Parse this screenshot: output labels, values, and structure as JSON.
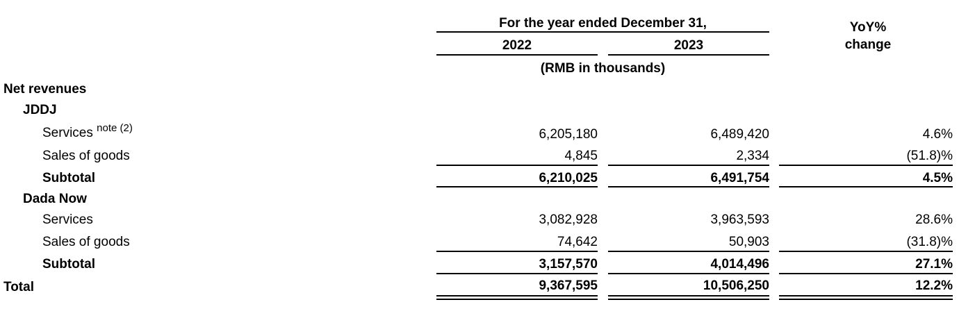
{
  "header": {
    "period_title": "For the year ended December 31,",
    "year_2022": "2022",
    "year_2023": "2023",
    "yoy_line1": "YoY%",
    "yoy_line2": "change",
    "unit": "(RMB in thousands)"
  },
  "rows": {
    "net_revenues": {
      "label": "Net revenues"
    },
    "jddj": {
      "label": "JDDJ"
    },
    "jddj_services": {
      "label": "Services",
      "note": "note (2)",
      "v2022": "6,205,180",
      "v2023": "6,489,420",
      "yoy": "4.6%"
    },
    "jddj_goods": {
      "label": "Sales of goods",
      "v2022": "4,845",
      "v2023": "2,334",
      "yoy": "(51.8)%"
    },
    "jddj_subtotal": {
      "label": "Subtotal",
      "v2022": "6,210,025",
      "v2023": "6,491,754",
      "yoy": "4.5%"
    },
    "dada_now": {
      "label": "Dada Now"
    },
    "dada_services": {
      "label": "Services",
      "v2022": "3,082,928",
      "v2023": "3,963,593",
      "yoy": "28.6%"
    },
    "dada_goods": {
      "label": "Sales of goods",
      "v2022": "74,642",
      "v2023": "50,903",
      "yoy": "(31.8)%"
    },
    "dada_subtotal": {
      "label": "Subtotal",
      "v2022": "3,157,570",
      "v2023": "4,014,496",
      "yoy": "27.1%"
    },
    "total": {
      "label": "Total",
      "v2022": "9,367,595",
      "v2023": "10,506,250",
      "yoy": "12.2%"
    }
  }
}
